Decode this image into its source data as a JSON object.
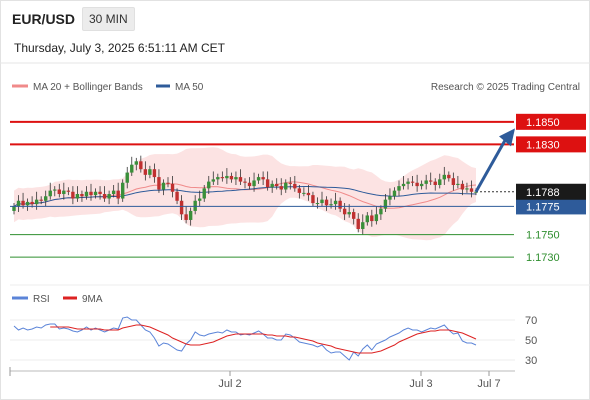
{
  "header": {
    "pair": "EUR/USD",
    "timeframe": "30 MIN",
    "datetime": "Thursday, July 3, 2025 6:51:11 AM CET",
    "credit": "Research © 2025 Trading Central"
  },
  "legend": {
    "main": [
      {
        "name": "MA 20 + Bollinger Bands",
        "color": "#f08a8a"
      },
      {
        "name": "MA 50",
        "color": "#2e5b9a"
      }
    ],
    "rsi": [
      {
        "name": "RSI",
        "color": "#5b84d8"
      },
      {
        "name": "9MA",
        "color": "#dd2222"
      }
    ]
  },
  "chart_data": [
    {
      "type": "candlestick",
      "title": "",
      "ylim": [
        1.1708,
        1.1872
      ],
      "x_ticks": [
        "Jul 2",
        "Jul 3",
        "Jul 7"
      ],
      "current_price": "1.1788",
      "levels": [
        {
          "value": 1.185,
          "label": "1.1850",
          "style": "resistance",
          "color": "#dd1111"
        },
        {
          "value": 1.183,
          "label": "1.1830",
          "style": "resistance",
          "color": "#dd1111"
        },
        {
          "value": 1.1775,
          "label": "1.1775",
          "style": "pivot",
          "color": "#2e5b9a"
        },
        {
          "value": 1.175,
          "label": "1.1750",
          "style": "support",
          "color": "#2f8f2f"
        },
        {
          "value": 1.173,
          "label": "1.1730",
          "style": "support",
          "color": "#2f8f2f"
        }
      ],
      "forecast_arrow": {
        "from": 1.1788,
        "to": 1.183,
        "color": "#2e5b9a"
      },
      "close": [
        1.1775,
        1.178,
        1.1776,
        1.1779,
        1.1777,
        1.1781,
        1.178,
        1.1784,
        1.1789,
        1.179,
        1.1786,
        1.1789,
        1.1788,
        1.1782,
        1.1786,
        1.1784,
        1.1788,
        1.1785,
        1.1788,
        1.1786,
        1.1782,
        1.1786,
        1.1789,
        1.1782,
        1.1796,
        1.1805,
        1.1812,
        1.1815,
        1.1808,
        1.1803,
        1.1808,
        1.1801,
        1.179,
        1.1796,
        1.1795,
        1.1788,
        1.178,
        1.1768,
        1.1763,
        1.1771,
        1.178,
        1.1782,
        1.1791,
        1.1797,
        1.1799,
        1.1801,
        1.18,
        1.1802,
        1.1799,
        1.1801,
        1.1797,
        1.1796,
        1.1793,
        1.1798,
        1.1801,
        1.1799,
        1.1792,
        1.1795,
        1.1793,
        1.179,
        1.1796,
        1.1795,
        1.1791,
        1.1787,
        1.1787,
        1.1785,
        1.1778,
        1.1778,
        1.1781,
        1.1776,
        1.1777,
        1.178,
        1.1773,
        1.1768,
        1.177,
        1.1764,
        1.1755,
        1.1761,
        1.1767,
        1.1762,
        1.1768,
        1.1773,
        1.1781,
        1.1784,
        1.1789,
        1.1793,
        1.1795,
        1.1797,
        1.1796,
        1.1793,
        1.1795,
        1.1798,
        1.1797,
        1.1794,
        1.1799,
        1.1803,
        1.18,
        1.1794,
        1.1795,
        1.179,
        1.1791,
        1.1788,
        1.1788
      ]
    },
    {
      "type": "line",
      "title": "RSI",
      "ylim": [
        20,
        80
      ],
      "y_ticks": [
        70,
        50,
        30
      ],
      "series": [
        {
          "name": "RSI",
          "values": [
            64,
            60,
            62,
            60,
            61,
            63,
            62,
            65,
            66,
            66,
            61,
            62,
            61,
            59,
            58,
            60,
            63,
            60,
            62,
            60,
            58,
            60,
            62,
            61,
            72,
            73,
            70,
            70,
            65,
            60,
            58,
            52,
            44,
            47,
            46,
            43,
            40,
            39,
            46,
            50,
            58,
            55,
            54,
            56,
            57,
            58,
            57,
            60,
            58,
            58,
            55,
            56,
            55,
            57,
            59,
            56,
            52,
            52,
            50,
            50,
            56,
            55,
            52,
            48,
            47,
            46,
            45,
            43,
            45,
            40,
            37,
            38,
            38,
            34,
            30,
            38,
            34,
            41,
            45,
            40,
            46,
            48,
            50,
            53,
            55,
            57,
            60,
            62,
            60,
            60,
            58,
            60,
            62,
            61,
            63,
            65,
            60,
            56,
            57,
            49,
            47,
            47,
            45
          ]
        },
        {
          "name": "9MA",
          "values": [
            null,
            null,
            null,
            null,
            null,
            null,
            null,
            null,
            63,
            63,
            63,
            63,
            63,
            62,
            61,
            61,
            61,
            61,
            61,
            61,
            60,
            60,
            60,
            60,
            62,
            63,
            64,
            65,
            65,
            64,
            63,
            61,
            59,
            57,
            55,
            52,
            50,
            48,
            46,
            45,
            45,
            45,
            46,
            47,
            48,
            50,
            52,
            54,
            55,
            56,
            56,
            56,
            56,
            56,
            56,
            56,
            55,
            55,
            54,
            54,
            54,
            53,
            53,
            52,
            51,
            50,
            49,
            47,
            46,
            45,
            44,
            42,
            41,
            40,
            39,
            38,
            37,
            37,
            37,
            37,
            38,
            39,
            41,
            43,
            45,
            48,
            50,
            52,
            54,
            56,
            57,
            58,
            59,
            59,
            60,
            60,
            60,
            59,
            58,
            57,
            55,
            53,
            51
          ]
        }
      ]
    }
  ]
}
